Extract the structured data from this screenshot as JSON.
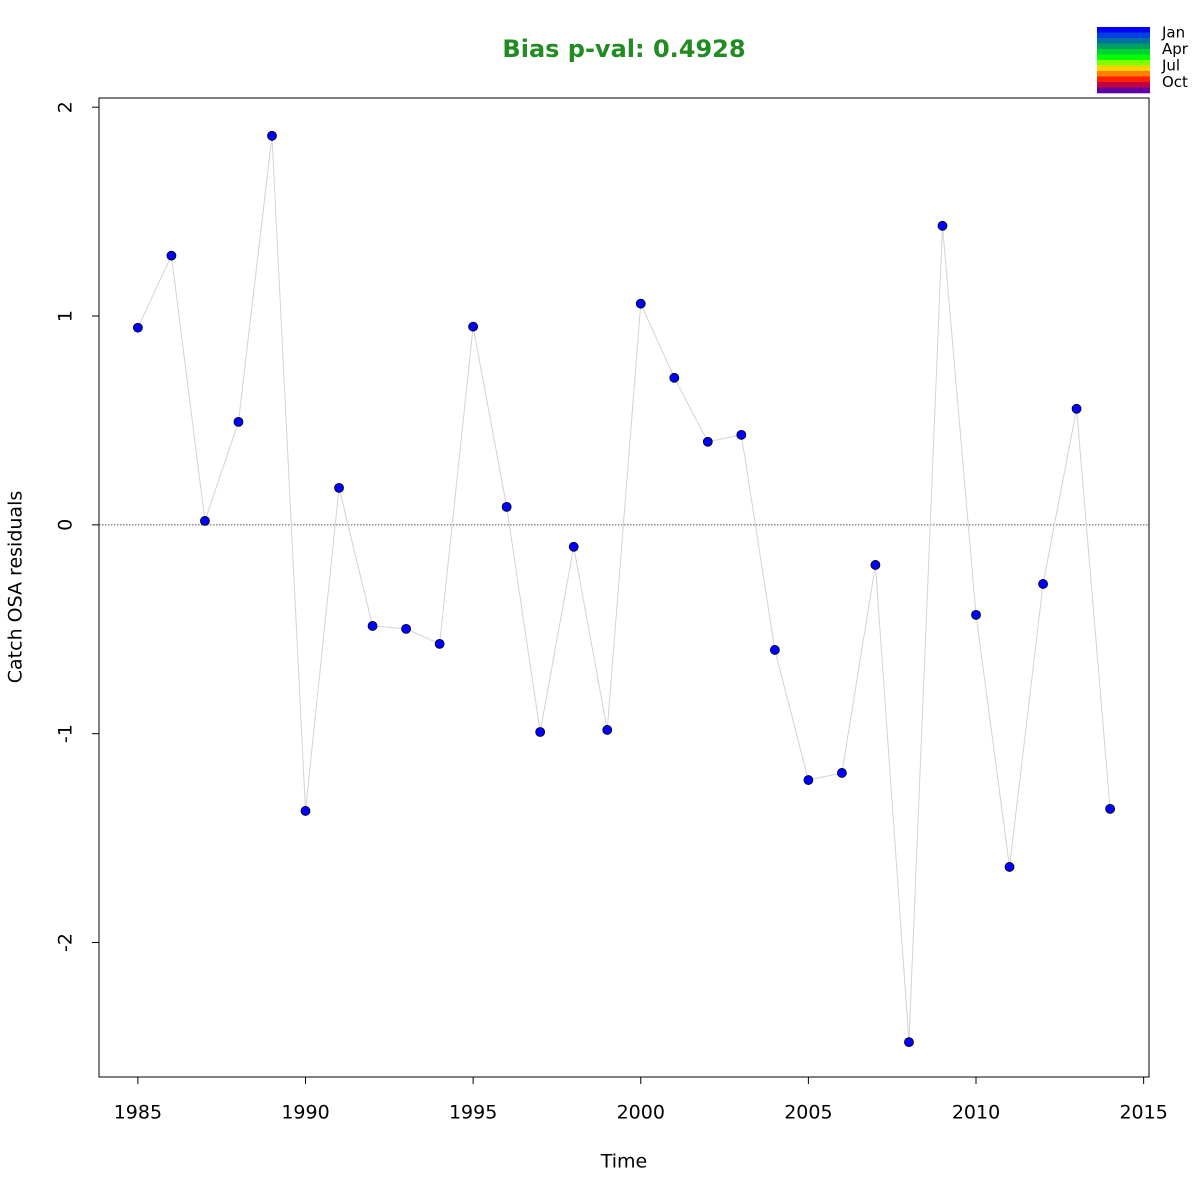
{
  "chart_data": {
    "type": "line",
    "title": "Bias p-val: 0.4928",
    "x_label": "Time",
    "y_label": "Catch OSA residuals",
    "x": [
      1985,
      1986,
      1987,
      1988,
      1989,
      1990,
      1991,
      1992,
      1993,
      1994,
      1995,
      1996,
      1997,
      1998,
      1999,
      2000,
      2001,
      2002,
      2003,
      2004,
      2005,
      2006,
      2007,
      2008,
      2009,
      2010,
      2011,
      2012,
      2013,
      2014
    ],
    "values": [
      0.944,
      1.289,
      0.019,
      0.493,
      1.863,
      -1.37,
      0.177,
      -0.484,
      -0.498,
      -0.57,
      0.949,
      0.086,
      -0.992,
      -0.105,
      -0.982,
      1.059,
      0.704,
      0.398,
      0.431,
      -0.599,
      -1.222,
      -1.188,
      -0.192,
      -2.477,
      1.432,
      -0.431,
      -1.638,
      -0.283,
      0.556,
      -1.36
    ],
    "point_color": "#0000ff",
    "line_color": "#d3d3d3",
    "title_color": "#228b22",
    "xlim": [
      1983.84,
      2015.16
    ],
    "ylim": [
      -2.644,
      2.044
    ],
    "xticks": [
      1985,
      1990,
      1995,
      2000,
      2005,
      2010,
      2015
    ],
    "yticks": [
      -2,
      -1,
      0,
      1,
      2
    ],
    "hline": 0,
    "color_key": {
      "colors": [
        "#0000ff",
        "#0040e0",
        "#0070a0",
        "#00a060",
        "#00d030",
        "#00ff00",
        "#80ff00",
        "#ffd000",
        "#ff8000",
        "#ff2000",
        "#c00040",
        "#6000a0"
      ],
      "labels": [
        "Jan",
        "Apr",
        "Jul",
        "Oct"
      ]
    }
  }
}
